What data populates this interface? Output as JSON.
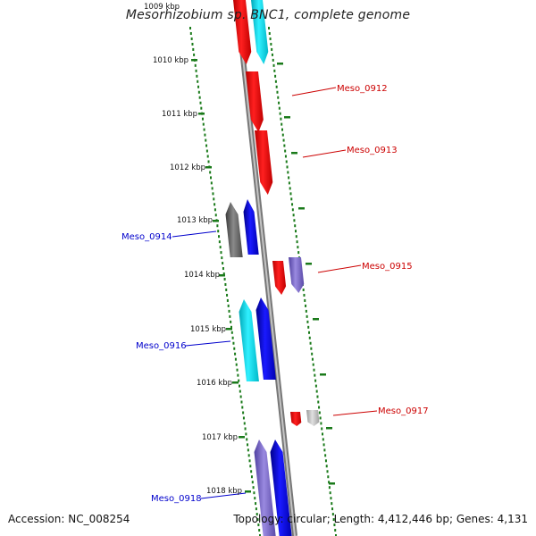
{
  "title": "Mesorhizobium sp. BNC1, complete genome",
  "footer": {
    "accession": "Accession: NC_008254",
    "stats": "Topology: circular; Length: 4,412,446 bp; Genes: 4,131"
  },
  "colors": {
    "forward_label": "#cc0000",
    "reverse_label": "#0000cc",
    "tick": "#1a7a1a",
    "backbone": "#8a8a8a"
  },
  "scale_labels": [
    "1009 kbp",
    "1010 kbp",
    "1011 kbp",
    "1012 kbp",
    "1013 kbp",
    "1014 kbp",
    "1015 kbp",
    "1016 kbp",
    "1017 kbp",
    "1018 kbp"
  ],
  "gene_labels": [
    {
      "text": "Meso_0912",
      "strand": "forward"
    },
    {
      "text": "Meso_0913",
      "strand": "forward"
    },
    {
      "text": "Meso_0914",
      "strand": "reverse"
    },
    {
      "text": "Meso_0915",
      "strand": "forward"
    },
    {
      "text": "Meso_0916",
      "strand": "reverse"
    },
    {
      "text": "Meso_0917",
      "strand": "forward"
    },
    {
      "text": "Meso_0918",
      "strand": "reverse"
    }
  ]
}
